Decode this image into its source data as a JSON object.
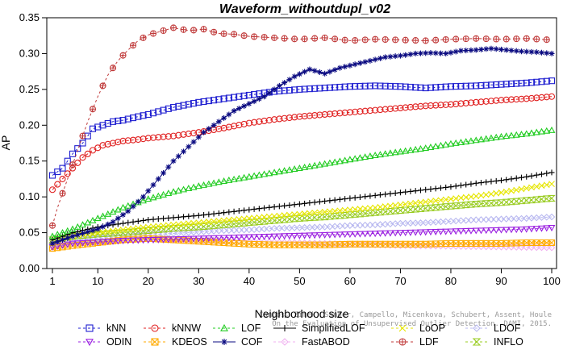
{
  "chart_data": {
    "type": "line",
    "title": "Waveform_withoutdupl_v02",
    "xlabel": "Neighborhood size",
    "ylabel": "AP",
    "xlim": [
      1,
      100
    ],
    "ylim": [
      0,
      0.35
    ],
    "xticks": [
      1,
      10,
      20,
      30,
      40,
      50,
      60,
      70,
      80,
      90,
      100
    ],
    "yticks": [
      0.0,
      0.05,
      0.1,
      0.15,
      0.2,
      0.25,
      0.3,
      0.35
    ],
    "ytick_labels": [
      "0.00",
      "0.05",
      "0.10",
      "0.15",
      "0.20",
      "0.25",
      "0.30",
      "0.35"
    ],
    "grid": false,
    "legend_position": "bottom",
    "watermark": [
      "Campos, Zimek, Sander, Campello, Micenkova, Schubert, Assent, Houle",
      "On the Evaluation of Unsupervised Outlier Detection. DAMI, 2015."
    ],
    "series": [
      {
        "name": "kNN",
        "color": "#1f1fd0",
        "marker": "square",
        "dash": "3,3",
        "points": [
          [
            1,
            0.13
          ],
          [
            3,
            0.14
          ],
          [
            5,
            0.16
          ],
          [
            7,
            0.175
          ],
          [
            9,
            0.195
          ],
          [
            11,
            0.2
          ],
          [
            13,
            0.205
          ],
          [
            15,
            0.207
          ],
          [
            18,
            0.212
          ],
          [
            20,
            0.215
          ],
          [
            25,
            0.225
          ],
          [
            30,
            0.232
          ],
          [
            35,
            0.237
          ],
          [
            40,
            0.242
          ],
          [
            45,
            0.247
          ],
          [
            50,
            0.25
          ],
          [
            55,
            0.252
          ],
          [
            60,
            0.254
          ],
          [
            65,
            0.255
          ],
          [
            70,
            0.254
          ],
          [
            75,
            0.252
          ],
          [
            80,
            0.254
          ],
          [
            85,
            0.255
          ],
          [
            90,
            0.257
          ],
          [
            95,
            0.259
          ],
          [
            100,
            0.262
          ]
        ]
      },
      {
        "name": "kNNW",
        "color": "#e02020",
        "marker": "circle",
        "dash": "3,3",
        "points": [
          [
            1,
            0.11
          ],
          [
            3,
            0.125
          ],
          [
            5,
            0.14
          ],
          [
            7,
            0.155
          ],
          [
            9,
            0.165
          ],
          [
            11,
            0.172
          ],
          [
            13,
            0.175
          ],
          [
            15,
            0.178
          ],
          [
            18,
            0.18
          ],
          [
            20,
            0.182
          ],
          [
            25,
            0.185
          ],
          [
            30,
            0.19
          ],
          [
            35,
            0.196
          ],
          [
            40,
            0.203
          ],
          [
            45,
            0.208
          ],
          [
            50,
            0.212
          ],
          [
            55,
            0.215
          ],
          [
            60,
            0.218
          ],
          [
            65,
            0.221
          ],
          [
            70,
            0.224
          ],
          [
            75,
            0.227
          ],
          [
            80,
            0.229
          ],
          [
            85,
            0.232
          ],
          [
            90,
            0.235
          ],
          [
            95,
            0.237
          ],
          [
            100,
            0.24
          ]
        ]
      },
      {
        "name": "LOF",
        "color": "#22cc22",
        "marker": "triangle",
        "dash": "3,3",
        "points": [
          [
            1,
            0.045
          ],
          [
            5,
            0.055
          ],
          [
            10,
            0.07
          ],
          [
            15,
            0.085
          ],
          [
            20,
            0.097
          ],
          [
            25,
            0.107
          ],
          [
            30,
            0.115
          ],
          [
            35,
            0.122
          ],
          [
            40,
            0.128
          ],
          [
            45,
            0.134
          ],
          [
            50,
            0.14
          ],
          [
            55,
            0.146
          ],
          [
            60,
            0.152
          ],
          [
            65,
            0.158
          ],
          [
            70,
            0.163
          ],
          [
            75,
            0.168
          ],
          [
            80,
            0.174
          ],
          [
            85,
            0.179
          ],
          [
            90,
            0.184
          ],
          [
            95,
            0.188
          ],
          [
            100,
            0.193
          ]
        ]
      },
      {
        "name": "SimplifiedLOF",
        "color": "#000000",
        "marker": "plus",
        "dash": "",
        "points": [
          [
            1,
            0.04
          ],
          [
            5,
            0.05
          ],
          [
            10,
            0.058
          ],
          [
            15,
            0.063
          ],
          [
            20,
            0.068
          ],
          [
            25,
            0.071
          ],
          [
            30,
            0.074
          ],
          [
            35,
            0.078
          ],
          [
            40,
            0.082
          ],
          [
            45,
            0.086
          ],
          [
            50,
            0.09
          ],
          [
            55,
            0.094
          ],
          [
            60,
            0.098
          ],
          [
            65,
            0.102
          ],
          [
            70,
            0.106
          ],
          [
            75,
            0.11
          ],
          [
            80,
            0.114
          ],
          [
            85,
            0.119
          ],
          [
            90,
            0.123
          ],
          [
            95,
            0.128
          ],
          [
            100,
            0.134
          ]
        ]
      },
      {
        "name": "LoOP",
        "color": "#e6e600",
        "marker": "cross",
        "dash": "3,3",
        "points": [
          [
            1,
            0.035
          ],
          [
            5,
            0.045
          ],
          [
            10,
            0.05
          ],
          [
            15,
            0.054
          ],
          [
            20,
            0.058
          ],
          [
            25,
            0.061
          ],
          [
            30,
            0.064
          ],
          [
            35,
            0.067
          ],
          [
            40,
            0.07
          ],
          [
            45,
            0.073
          ],
          [
            50,
            0.076
          ],
          [
            55,
            0.079
          ],
          [
            60,
            0.082
          ],
          [
            65,
            0.085
          ],
          [
            70,
            0.089
          ],
          [
            75,
            0.093
          ],
          [
            80,
            0.097
          ],
          [
            85,
            0.101
          ],
          [
            90,
            0.106
          ],
          [
            95,
            0.112
          ],
          [
            100,
            0.118
          ]
        ]
      },
      {
        "name": "LDOF",
        "color": "#b8b8f0",
        "marker": "diamond",
        "dash": "3,3",
        "points": [
          [
            1,
            0.035
          ],
          [
            5,
            0.04
          ],
          [
            10,
            0.042
          ],
          [
            15,
            0.045
          ],
          [
            20,
            0.047
          ],
          [
            25,
            0.049
          ],
          [
            30,
            0.051
          ],
          [
            35,
            0.053
          ],
          [
            40,
            0.054
          ],
          [
            45,
            0.056
          ],
          [
            50,
            0.057
          ],
          [
            55,
            0.058
          ],
          [
            60,
            0.06
          ],
          [
            65,
            0.061
          ],
          [
            70,
            0.063
          ],
          [
            75,
            0.064
          ],
          [
            80,
            0.066
          ],
          [
            85,
            0.068
          ],
          [
            90,
            0.069
          ],
          [
            95,
            0.07
          ],
          [
            100,
            0.072
          ]
        ]
      },
      {
        "name": "ODIN",
        "color": "#9a1fe0",
        "marker": "triangle-down",
        "dash": "3,3",
        "points": [
          [
            1,
            0.03
          ],
          [
            5,
            0.035
          ],
          [
            10,
            0.037
          ],
          [
            15,
            0.039
          ],
          [
            20,
            0.04
          ],
          [
            25,
            0.041
          ],
          [
            30,
            0.042
          ],
          [
            35,
            0.043
          ],
          [
            40,
            0.044
          ],
          [
            45,
            0.045
          ],
          [
            50,
            0.046
          ],
          [
            55,
            0.047
          ],
          [
            60,
            0.048
          ],
          [
            65,
            0.049
          ],
          [
            70,
            0.05
          ],
          [
            75,
            0.051
          ],
          [
            80,
            0.052
          ],
          [
            85,
            0.053
          ],
          [
            90,
            0.054
          ],
          [
            95,
            0.055
          ],
          [
            100,
            0.057
          ]
        ]
      },
      {
        "name": "KDEOS",
        "color": "#ffaa00",
        "marker": "square-x",
        "dash": "3,3",
        "points": [
          [
            1,
            0.028
          ],
          [
            5,
            0.032
          ],
          [
            10,
            0.036
          ],
          [
            15,
            0.04
          ],
          [
            20,
            0.042
          ],
          [
            25,
            0.04
          ],
          [
            30,
            0.038
          ],
          [
            35,
            0.036
          ],
          [
            40,
            0.034
          ],
          [
            45,
            0.033
          ],
          [
            50,
            0.033
          ],
          [
            55,
            0.033
          ],
          [
            60,
            0.034
          ],
          [
            65,
            0.034
          ],
          [
            70,
            0.034
          ],
          [
            75,
            0.034
          ],
          [
            80,
            0.035
          ],
          [
            85,
            0.035
          ],
          [
            90,
            0.035
          ],
          [
            95,
            0.036
          ],
          [
            100,
            0.036
          ]
        ]
      },
      {
        "name": "COF",
        "color": "#0a0a80",
        "marker": "asterisk",
        "dash": "",
        "points": [
          [
            1,
            0.035
          ],
          [
            5,
            0.045
          ],
          [
            10,
            0.055
          ],
          [
            13,
            0.065
          ],
          [
            16,
            0.08
          ],
          [
            19,
            0.1
          ],
          [
            22,
            0.125
          ],
          [
            25,
            0.15
          ],
          [
            28,
            0.17
          ],
          [
            31,
            0.19
          ],
          [
            34,
            0.205
          ],
          [
            37,
            0.22
          ],
          [
            40,
            0.23
          ],
          [
            43,
            0.24
          ],
          [
            46,
            0.255
          ],
          [
            49,
            0.268
          ],
          [
            52,
            0.278
          ],
          [
            55,
            0.272
          ],
          [
            58,
            0.28
          ],
          [
            61,
            0.285
          ],
          [
            64,
            0.29
          ],
          [
            67,
            0.295
          ],
          [
            70,
            0.297
          ],
          [
            73,
            0.3
          ],
          [
            76,
            0.301
          ],
          [
            79,
            0.3
          ],
          [
            82,
            0.304
          ],
          [
            85,
            0.305
          ],
          [
            88,
            0.307
          ],
          [
            91,
            0.305
          ],
          [
            94,
            0.303
          ],
          [
            97,
            0.302
          ],
          [
            100,
            0.3
          ]
        ]
      },
      {
        "name": "FastABOD",
        "color": "#f0b0f0",
        "marker": "diamond",
        "dash": "3,3",
        "points": [
          [
            1,
            0.03
          ],
          [
            5,
            0.035
          ],
          [
            10,
            0.038
          ],
          [
            20,
            0.04
          ],
          [
            30,
            0.039
          ],
          [
            40,
            0.038
          ],
          [
            50,
            0.036
          ],
          [
            60,
            0.034
          ],
          [
            70,
            0.032
          ],
          [
            80,
            0.031
          ],
          [
            90,
            0.03
          ],
          [
            100,
            0.029
          ]
        ]
      },
      {
        "name": "LDF",
        "color": "#c03a3a",
        "marker": "circle-plus",
        "dash": "3,3",
        "points": [
          [
            1,
            0.06
          ],
          [
            2,
            0.085
          ],
          [
            4,
            0.125
          ],
          [
            6,
            0.165
          ],
          [
            8,
            0.205
          ],
          [
            10,
            0.24
          ],
          [
            12,
            0.27
          ],
          [
            14,
            0.29
          ],
          [
            16,
            0.305
          ],
          [
            18,
            0.318
          ],
          [
            20,
            0.326
          ],
          [
            22,
            0.33
          ],
          [
            25,
            0.336
          ],
          [
            28,
            0.332
          ],
          [
            31,
            0.334
          ],
          [
            34,
            0.328
          ],
          [
            37,
            0.327
          ],
          [
            40,
            0.324
          ],
          [
            45,
            0.322
          ],
          [
            50,
            0.32
          ],
          [
            55,
            0.322
          ],
          [
            60,
            0.318
          ],
          [
            65,
            0.32
          ],
          [
            70,
            0.319
          ],
          [
            75,
            0.318
          ],
          [
            80,
            0.32
          ],
          [
            85,
            0.321
          ],
          [
            90,
            0.32
          ],
          [
            95,
            0.321
          ],
          [
            100,
            0.319
          ]
        ]
      },
      {
        "name": "INFLO",
        "color": "#99cc22",
        "marker": "hourglass",
        "dash": "3,3",
        "points": [
          [
            1,
            0.04
          ],
          [
            5,
            0.045
          ],
          [
            10,
            0.048
          ],
          [
            15,
            0.05
          ],
          [
            20,
            0.053
          ],
          [
            25,
            0.056
          ],
          [
            30,
            0.058
          ],
          [
            35,
            0.061
          ],
          [
            40,
            0.064
          ],
          [
            45,
            0.067
          ],
          [
            50,
            0.07
          ],
          [
            55,
            0.072
          ],
          [
            60,
            0.075
          ],
          [
            65,
            0.078
          ],
          [
            70,
            0.081
          ],
          [
            75,
            0.084
          ],
          [
            80,
            0.087
          ],
          [
            85,
            0.09
          ],
          [
            90,
            0.092
          ],
          [
            95,
            0.095
          ],
          [
            100,
            0.098
          ]
        ]
      }
    ]
  }
}
